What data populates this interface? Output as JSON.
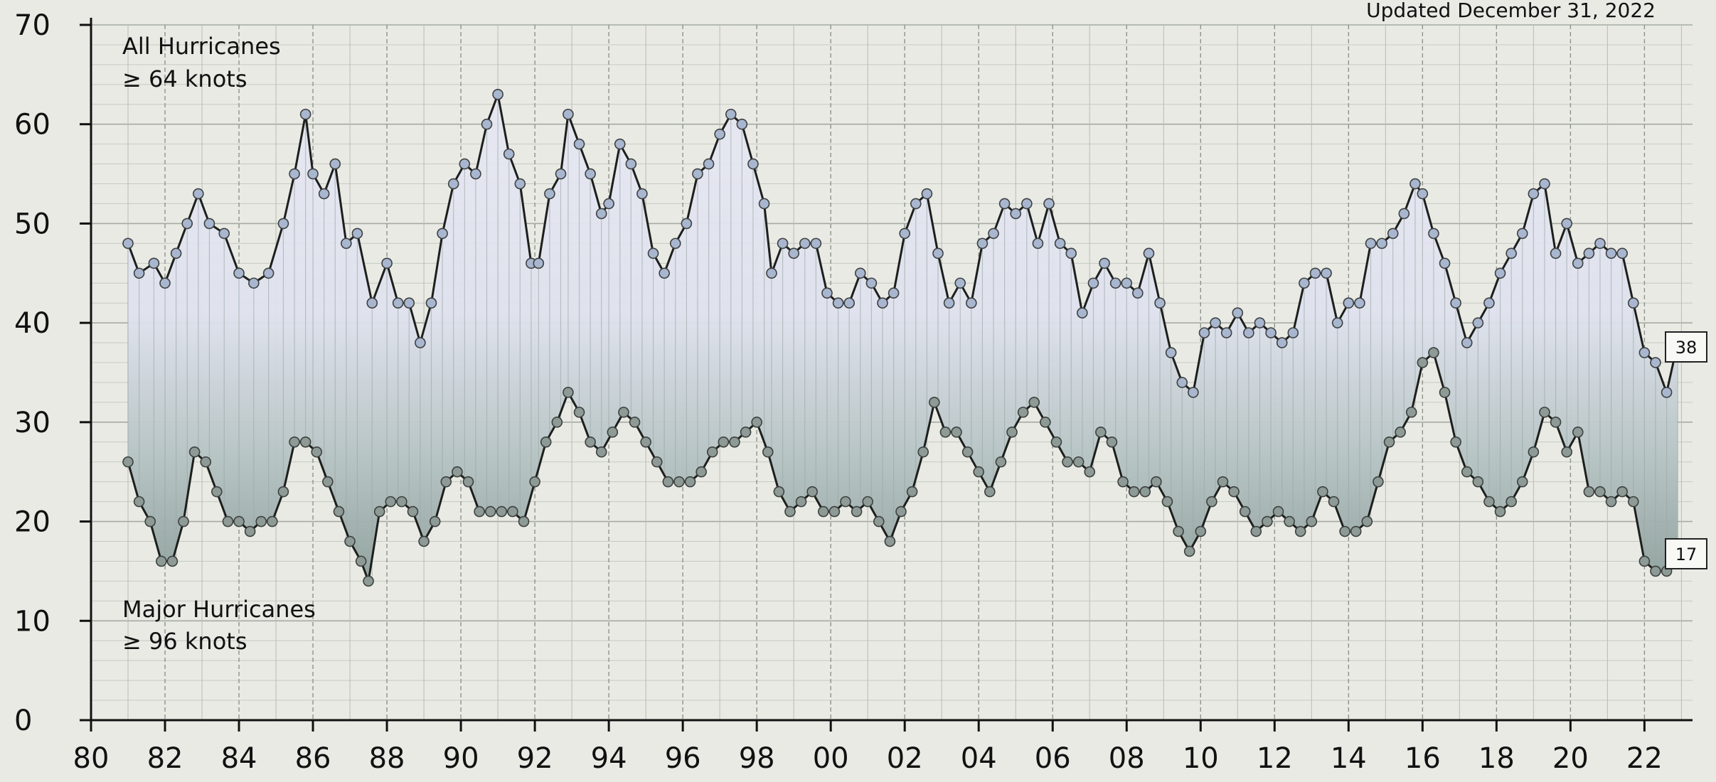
{
  "chart_data": {
    "type": "line",
    "updated_text": "Updated December 31, 2022",
    "ylim": [
      0,
      70
    ],
    "y_ticks": [
      "0",
      "10",
      "20",
      "30",
      "40",
      "50",
      "60",
      "70"
    ],
    "xlim": [
      1980,
      2023.3
    ],
    "x_ticks": [
      {
        "value": 1980,
        "label": "80"
      },
      {
        "value": 1982,
        "label": "82"
      },
      {
        "value": 1984,
        "label": "84"
      },
      {
        "value": 1986,
        "label": "86"
      },
      {
        "value": 1988,
        "label": "88"
      },
      {
        "value": 1990,
        "label": "90"
      },
      {
        "value": 1992,
        "label": "92"
      },
      {
        "value": 1994,
        "label": "94"
      },
      {
        "value": 1996,
        "label": "96"
      },
      {
        "value": 1998,
        "label": "98"
      },
      {
        "value": 2000,
        "label": "00"
      },
      {
        "value": 2002,
        "label": "02"
      },
      {
        "value": 2004,
        "label": "04"
      },
      {
        "value": 2006,
        "label": "06"
      },
      {
        "value": 2008,
        "label": "08"
      },
      {
        "value": 2010,
        "label": "10"
      },
      {
        "value": 2012,
        "label": "12"
      },
      {
        "value": 2014,
        "label": "14"
      },
      {
        "value": 2016,
        "label": "16"
      },
      {
        "value": 2018,
        "label": "18"
      },
      {
        "value": 2020,
        "label": "20"
      },
      {
        "value": 2022,
        "label": "22"
      }
    ],
    "grid": true,
    "series": [
      {
        "label_line1": "All Hurricanes",
        "label_line2": "≥ 64 knots",
        "end_label": "38",
        "color": "#a9b6cf",
        "points": [
          [
            1981.0,
            48
          ],
          [
            1981.3,
            45
          ],
          [
            1981.7,
            46
          ],
          [
            1982.0,
            44
          ],
          [
            1982.3,
            47
          ],
          [
            1982.6,
            50
          ],
          [
            1982.9,
            53
          ],
          [
            1983.2,
            50
          ],
          [
            1983.6,
            49
          ],
          [
            1984.0,
            45
          ],
          [
            1984.4,
            44
          ],
          [
            1984.8,
            45
          ],
          [
            1985.2,
            50
          ],
          [
            1985.5,
            55
          ],
          [
            1985.8,
            61
          ],
          [
            1986.0,
            55
          ],
          [
            1986.3,
            53
          ],
          [
            1986.6,
            56
          ],
          [
            1986.9,
            48
          ],
          [
            1987.2,
            49
          ],
          [
            1987.6,
            42
          ],
          [
            1988.0,
            46
          ],
          [
            1988.3,
            42
          ],
          [
            1988.6,
            42
          ],
          [
            1988.9,
            38
          ],
          [
            1989.2,
            42
          ],
          [
            1989.5,
            49
          ],
          [
            1989.8,
            54
          ],
          [
            1990.1,
            56
          ],
          [
            1990.4,
            55
          ],
          [
            1990.7,
            60
          ],
          [
            1991.0,
            63
          ],
          [
            1991.3,
            57
          ],
          [
            1991.6,
            54
          ],
          [
            1991.9,
            46
          ],
          [
            1992.1,
            46
          ],
          [
            1992.4,
            53
          ],
          [
            1992.7,
            55
          ],
          [
            1992.9,
            61
          ],
          [
            1993.2,
            58
          ],
          [
            1993.5,
            55
          ],
          [
            1993.8,
            51
          ],
          [
            1994.0,
            52
          ],
          [
            1994.3,
            58
          ],
          [
            1994.6,
            56
          ],
          [
            1994.9,
            53
          ],
          [
            1995.2,
            47
          ],
          [
            1995.5,
            45
          ],
          [
            1995.8,
            48
          ],
          [
            1996.1,
            50
          ],
          [
            1996.4,
            55
          ],
          [
            1996.7,
            56
          ],
          [
            1997.0,
            59
          ],
          [
            1997.3,
            61
          ],
          [
            1997.6,
            60
          ],
          [
            1997.9,
            56
          ],
          [
            1998.2,
            52
          ],
          [
            1998.4,
            45
          ],
          [
            1998.7,
            48
          ],
          [
            1999.0,
            47
          ],
          [
            1999.3,
            48
          ],
          [
            1999.6,
            48
          ],
          [
            1999.9,
            43
          ],
          [
            2000.2,
            42
          ],
          [
            2000.5,
            42
          ],
          [
            2000.8,
            45
          ],
          [
            2001.1,
            44
          ],
          [
            2001.4,
            42
          ],
          [
            2001.7,
            43
          ],
          [
            2002.0,
            49
          ],
          [
            2002.3,
            52
          ],
          [
            2002.6,
            53
          ],
          [
            2002.9,
            47
          ],
          [
            2003.2,
            42
          ],
          [
            2003.5,
            44
          ],
          [
            2003.8,
            42
          ],
          [
            2004.1,
            48
          ],
          [
            2004.4,
            49
          ],
          [
            2004.7,
            52
          ],
          [
            2005.0,
            51
          ],
          [
            2005.3,
            52
          ],
          [
            2005.6,
            48
          ],
          [
            2005.9,
            52
          ],
          [
            2006.2,
            48
          ],
          [
            2006.5,
            47
          ],
          [
            2006.8,
            41
          ],
          [
            2007.1,
            44
          ],
          [
            2007.4,
            46
          ],
          [
            2007.7,
            44
          ],
          [
            2008.0,
            44
          ],
          [
            2008.3,
            43
          ],
          [
            2008.6,
            47
          ],
          [
            2008.9,
            42
          ],
          [
            2009.2,
            37
          ],
          [
            2009.5,
            34
          ],
          [
            2009.8,
            33
          ],
          [
            2010.1,
            39
          ],
          [
            2010.4,
            40
          ],
          [
            2010.7,
            39
          ],
          [
            2011.0,
            41
          ],
          [
            2011.3,
            39
          ],
          [
            2011.6,
            40
          ],
          [
            2011.9,
            39
          ],
          [
            2012.2,
            38
          ],
          [
            2012.5,
            39
          ],
          [
            2012.8,
            44
          ],
          [
            2013.1,
            45
          ],
          [
            2013.4,
            45
          ],
          [
            2013.7,
            40
          ],
          [
            2014.0,
            42
          ],
          [
            2014.3,
            42
          ],
          [
            2014.6,
            48
          ],
          [
            2014.9,
            48
          ],
          [
            2015.2,
            49
          ],
          [
            2015.5,
            51
          ],
          [
            2015.8,
            54
          ],
          [
            2016.0,
            53
          ],
          [
            2016.3,
            49
          ],
          [
            2016.6,
            46
          ],
          [
            2016.9,
            42
          ],
          [
            2017.2,
            38
          ],
          [
            2017.5,
            40
          ],
          [
            2017.8,
            42
          ],
          [
            2018.1,
            45
          ],
          [
            2018.4,
            47
          ],
          [
            2018.7,
            49
          ],
          [
            2019.0,
            53
          ],
          [
            2019.3,
            54
          ],
          [
            2019.6,
            47
          ],
          [
            2019.9,
            50
          ],
          [
            2020.2,
            46
          ],
          [
            2020.5,
            47
          ],
          [
            2020.8,
            48
          ],
          [
            2021.1,
            47
          ],
          [
            2021.4,
            47
          ],
          [
            2021.7,
            42
          ],
          [
            2022.0,
            37
          ],
          [
            2022.3,
            36
          ],
          [
            2022.6,
            33
          ],
          [
            2022.9,
            38
          ]
        ]
      },
      {
        "label_line1": "Major Hurricanes",
        "label_line2": "≥ 96 knots",
        "end_label": "17",
        "color": "#8d9a95",
        "points": [
          [
            1981.0,
            26
          ],
          [
            1981.3,
            22
          ],
          [
            1981.6,
            20
          ],
          [
            1981.9,
            16
          ],
          [
            1982.2,
            16
          ],
          [
            1982.5,
            20
          ],
          [
            1982.8,
            27
          ],
          [
            1983.1,
            26
          ],
          [
            1983.4,
            23
          ],
          [
            1983.7,
            20
          ],
          [
            1984.0,
            20
          ],
          [
            1984.3,
            19
          ],
          [
            1984.6,
            20
          ],
          [
            1984.9,
            20
          ],
          [
            1985.2,
            23
          ],
          [
            1985.5,
            28
          ],
          [
            1985.8,
            28
          ],
          [
            1986.1,
            27
          ],
          [
            1986.4,
            24
          ],
          [
            1986.7,
            21
          ],
          [
            1987.0,
            18
          ],
          [
            1987.3,
            16
          ],
          [
            1987.5,
            14
          ],
          [
            1987.8,
            21
          ],
          [
            1988.1,
            22
          ],
          [
            1988.4,
            22
          ],
          [
            1988.7,
            21
          ],
          [
            1989.0,
            18
          ],
          [
            1989.3,
            20
          ],
          [
            1989.6,
            24
          ],
          [
            1989.9,
            25
          ],
          [
            1990.2,
            24
          ],
          [
            1990.5,
            21
          ],
          [
            1990.8,
            21
          ],
          [
            1991.1,
            21
          ],
          [
            1991.4,
            21
          ],
          [
            1991.7,
            20
          ],
          [
            1992.0,
            24
          ],
          [
            1992.3,
            28
          ],
          [
            1992.6,
            30
          ],
          [
            1992.9,
            33
          ],
          [
            1993.2,
            31
          ],
          [
            1993.5,
            28
          ],
          [
            1993.8,
            27
          ],
          [
            1994.1,
            29
          ],
          [
            1994.4,
            31
          ],
          [
            1994.7,
            30
          ],
          [
            1995.0,
            28
          ],
          [
            1995.3,
            26
          ],
          [
            1995.6,
            24
          ],
          [
            1995.9,
            24
          ],
          [
            1996.2,
            24
          ],
          [
            1996.5,
            25
          ],
          [
            1996.8,
            27
          ],
          [
            1997.1,
            28
          ],
          [
            1997.4,
            28
          ],
          [
            1997.7,
            29
          ],
          [
            1998.0,
            30
          ],
          [
            1998.3,
            27
          ],
          [
            1998.6,
            23
          ],
          [
            1998.9,
            21
          ],
          [
            1999.2,
            22
          ],
          [
            1999.5,
            23
          ],
          [
            1999.8,
            21
          ],
          [
            2000.1,
            21
          ],
          [
            2000.4,
            22
          ],
          [
            2000.7,
            21
          ],
          [
            2001.0,
            22
          ],
          [
            2001.3,
            20
          ],
          [
            2001.6,
            18
          ],
          [
            2001.9,
            21
          ],
          [
            2002.2,
            23
          ],
          [
            2002.5,
            27
          ],
          [
            2002.8,
            32
          ],
          [
            2003.1,
            29
          ],
          [
            2003.4,
            29
          ],
          [
            2003.7,
            27
          ],
          [
            2004.0,
            25
          ],
          [
            2004.3,
            23
          ],
          [
            2004.6,
            26
          ],
          [
            2004.9,
            29
          ],
          [
            2005.2,
            31
          ],
          [
            2005.5,
            32
          ],
          [
            2005.8,
            30
          ],
          [
            2006.1,
            28
          ],
          [
            2006.4,
            26
          ],
          [
            2006.7,
            26
          ],
          [
            2007.0,
            25
          ],
          [
            2007.3,
            29
          ],
          [
            2007.6,
            28
          ],
          [
            2007.9,
            24
          ],
          [
            2008.2,
            23
          ],
          [
            2008.5,
            23
          ],
          [
            2008.8,
            24
          ],
          [
            2009.1,
            22
          ],
          [
            2009.4,
            19
          ],
          [
            2009.7,
            17
          ],
          [
            2010.0,
            19
          ],
          [
            2010.3,
            22
          ],
          [
            2010.6,
            24
          ],
          [
            2010.9,
            23
          ],
          [
            2011.2,
            21
          ],
          [
            2011.5,
            19
          ],
          [
            2011.8,
            20
          ],
          [
            2012.1,
            21
          ],
          [
            2012.4,
            20
          ],
          [
            2012.7,
            19
          ],
          [
            2013.0,
            20
          ],
          [
            2013.3,
            23
          ],
          [
            2013.6,
            22
          ],
          [
            2013.9,
            19
          ],
          [
            2014.2,
            19
          ],
          [
            2014.5,
            20
          ],
          [
            2014.8,
            24
          ],
          [
            2015.1,
            28
          ],
          [
            2015.4,
            29
          ],
          [
            2015.7,
            31
          ],
          [
            2016.0,
            36
          ],
          [
            2016.3,
            37
          ],
          [
            2016.6,
            33
          ],
          [
            2016.9,
            28
          ],
          [
            2017.2,
            25
          ],
          [
            2017.5,
            24
          ],
          [
            2017.8,
            22
          ],
          [
            2018.1,
            21
          ],
          [
            2018.4,
            22
          ],
          [
            2018.7,
            24
          ],
          [
            2019.0,
            27
          ],
          [
            2019.3,
            31
          ],
          [
            2019.6,
            30
          ],
          [
            2019.9,
            27
          ],
          [
            2020.2,
            29
          ],
          [
            2020.5,
            23
          ],
          [
            2020.8,
            23
          ],
          [
            2021.1,
            22
          ],
          [
            2021.4,
            23
          ],
          [
            2021.7,
            22
          ],
          [
            2022.0,
            16
          ],
          [
            2022.3,
            15
          ],
          [
            2022.6,
            15
          ],
          [
            2022.9,
            17
          ]
        ]
      }
    ]
  }
}
